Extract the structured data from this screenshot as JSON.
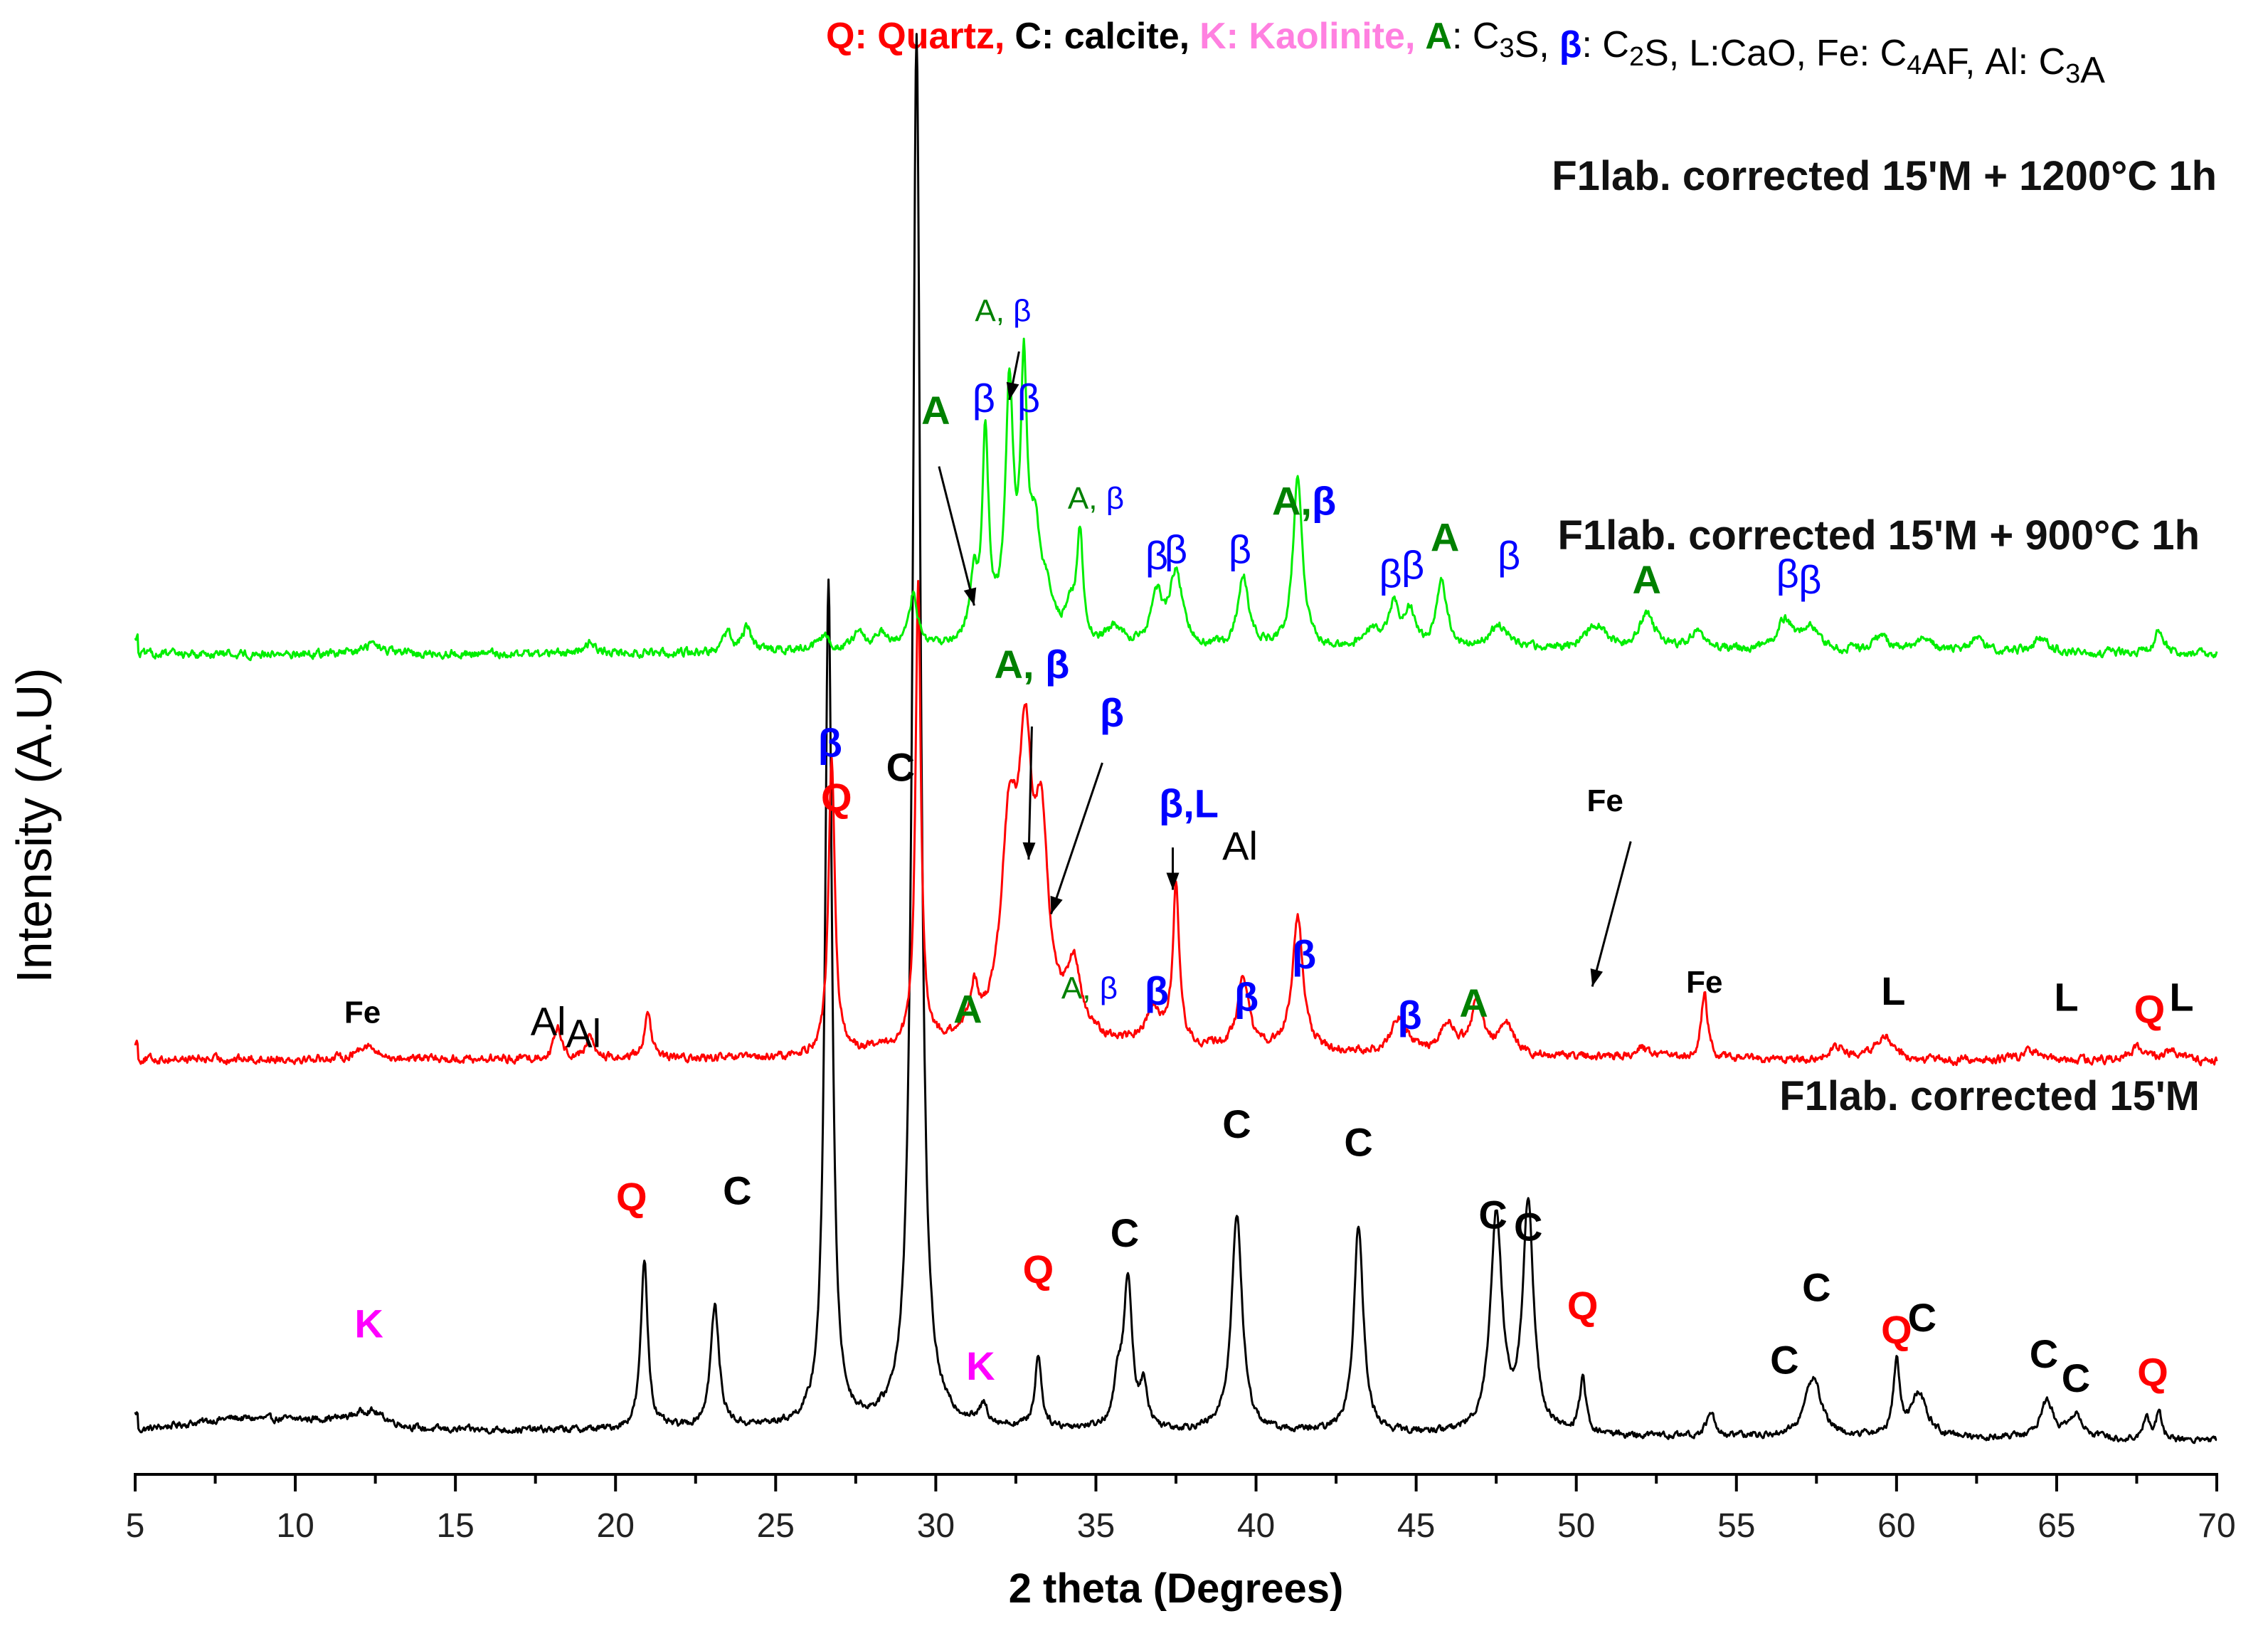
{
  "chart_data": {
    "type": "line",
    "xlabel": "2 theta (Degrees)",
    "ylabel": "Intensity (A.U)",
    "xlim": [
      5,
      70
    ],
    "x_ticks": [
      5,
      10,
      15,
      20,
      25,
      30,
      35,
      40,
      45,
      50,
      55,
      60,
      65,
      70
    ],
    "y_ticks_shown": false,
    "legend": {
      "placement": "top",
      "items": [
        {
          "symbol": "Q",
          "separator": ": ",
          "text": "Quartz,",
          "color": "#ff0000",
          "symbol_bold": true,
          "text_bold": true
        },
        {
          "symbol": "C",
          "separator": ": ",
          "text": "calcite,",
          "color": "#000000",
          "symbol_bold": true,
          "text_bold": true
        },
        {
          "symbol": "K",
          "separator": ": ",
          "text": "Kaolinite,",
          "color": "#ff80e0",
          "symbol_bold": true,
          "text_bold": true
        },
        {
          "symbol": "A",
          "separator": ": ",
          "text": "C3S,",
          "color": "#008000",
          "symbol_bold": true,
          "text_bold": false
        },
        {
          "symbol": "β",
          "separator": ": ",
          "text": "C2S,",
          "color": "#0000ff",
          "symbol_bold": true,
          "text_bold": false
        },
        {
          "symbol": "L",
          "separator": ":",
          "text": "CaO,",
          "color": "#000000",
          "symbol_bold": false,
          "text_bold": false
        },
        {
          "symbol": "Fe",
          "separator": ": ",
          "text": "C4AF,",
          "color": "#000000",
          "symbol_bold": false,
          "text_bold": false
        },
        {
          "symbol": "Al",
          "separator": ": ",
          "text": "C3A",
          "color": "#000000",
          "symbol_bold": false,
          "text_bold": false
        }
      ]
    },
    "series": [
      {
        "name": "F1lab. corrected 15'M",
        "color": "#000000",
        "baseline": 0,
        "noise": 5,
        "background": [
          [
            5,
            8
          ],
          [
            8,
            18
          ],
          [
            11,
            16
          ],
          [
            14,
            8
          ],
          [
            20,
            8
          ],
          [
            25,
            10
          ],
          [
            30,
            10
          ],
          [
            40,
            6
          ],
          [
            50,
            3
          ],
          [
            60,
            2
          ],
          [
            70,
            0
          ]
        ],
        "peaks": [
          [
            12.3,
            12,
            0.6
          ],
          [
            20.9,
            140,
            0.13
          ],
          [
            23.1,
            100,
            0.16
          ],
          [
            26.65,
            700,
            0.13
          ],
          [
            29.4,
            1150,
            0.15
          ],
          [
            31.5,
            15,
            0.15
          ],
          [
            33.2,
            60,
            0.12
          ],
          [
            35.7,
            35,
            0.15
          ],
          [
            36.0,
            120,
            0.16
          ],
          [
            36.5,
            35,
            0.12
          ],
          [
            39.4,
            180,
            0.2
          ],
          [
            43.2,
            170,
            0.18
          ],
          [
            47.5,
            180,
            0.22
          ],
          [
            48.5,
            190,
            0.2
          ],
          [
            50.2,
            45,
            0.12
          ],
          [
            54.2,
            20,
            0.15
          ],
          [
            57.4,
            50,
            0.3
          ],
          [
            60.0,
            60,
            0.12
          ],
          [
            60.7,
            35,
            0.3
          ],
          [
            64.7,
            30,
            0.25
          ],
          [
            65.6,
            20,
            0.25
          ],
          [
            67.8,
            20,
            0.1
          ],
          [
            68.2,
            25,
            0.1
          ]
        ]
      },
      {
        "name": "F1lab. corrected 15'M + 900°C 1h",
        "color": "#ff0000",
        "baseline": 310,
        "noise": 6,
        "background": [
          [
            5,
            5
          ],
          [
            25,
            5
          ],
          [
            30,
            15
          ],
          [
            33,
            25
          ],
          [
            36,
            15
          ],
          [
            45,
            8
          ],
          [
            55,
            5
          ],
          [
            70,
            3
          ]
        ],
        "peaks": [
          [
            12.2,
            12,
            0.3
          ],
          [
            18.2,
            25,
            0.15
          ],
          [
            19.2,
            18,
            0.15
          ],
          [
            21.0,
            40,
            0.12
          ],
          [
            26.75,
            240,
            0.12
          ],
          [
            29.45,
            380,
            0.1
          ],
          [
            31.2,
            35,
            0.15
          ],
          [
            32.3,
            160,
            0.3
          ],
          [
            32.8,
            200,
            0.25
          ],
          [
            33.3,
            150,
            0.25
          ],
          [
            34.3,
            55,
            0.25
          ],
          [
            36.8,
            30,
            0.3
          ],
          [
            37.5,
            130,
            0.12
          ],
          [
            39.6,
            60,
            0.2
          ],
          [
            41.3,
            110,
            0.2
          ],
          [
            44.5,
            30,
            0.3
          ],
          [
            46.0,
            25,
            0.3
          ],
          [
            46.9,
            45,
            0.2
          ],
          [
            47.8,
            25,
            0.3
          ],
          [
            52.0,
            10,
            0.2
          ],
          [
            54.0,
            55,
            0.12
          ],
          [
            58.2,
            10,
            0.3
          ],
          [
            59.6,
            20,
            0.3
          ],
          [
            64.2,
            8,
            0.3
          ],
          [
            67.5,
            10,
            0.3
          ],
          [
            68.6,
            8,
            0.3
          ]
        ]
      },
      {
        "name": "F1lab. corrected 15'M + 1200°C 1h",
        "color": "#00ee00",
        "baseline": 640,
        "noise": 6,
        "background": [
          [
            5,
            10
          ],
          [
            20,
            10
          ],
          [
            30,
            15
          ],
          [
            32,
            22
          ],
          [
            35,
            14
          ],
          [
            45,
            12
          ],
          [
            55,
            12
          ],
          [
            70,
            10
          ]
        ],
        "peaks": [
          [
            12.4,
            8,
            0.3
          ],
          [
            19.2,
            10,
            0.2
          ],
          [
            23.5,
            15,
            0.15
          ],
          [
            24.1,
            20,
            0.15
          ],
          [
            26.5,
            10,
            0.2
          ],
          [
            27.6,
            12,
            0.2
          ],
          [
            28.3,
            10,
            0.2
          ],
          [
            29.3,
            45,
            0.15
          ],
          [
            31.2,
            50,
            0.12
          ],
          [
            31.55,
            165,
            0.12
          ],
          [
            32.3,
            200,
            0.15
          ],
          [
            32.75,
            205,
            0.12
          ],
          [
            33.1,
            80,
            0.2
          ],
          [
            33.5,
            30,
            0.2
          ],
          [
            34.2,
            25,
            0.2
          ],
          [
            34.5,
            85,
            0.12
          ],
          [
            35.6,
            15,
            0.3
          ],
          [
            36.9,
            40,
            0.2
          ],
          [
            37.5,
            60,
            0.25
          ],
          [
            39.6,
            60,
            0.2
          ],
          [
            41.3,
            140,
            0.18
          ],
          [
            43.6,
            15,
            0.3
          ],
          [
            44.3,
            35,
            0.2
          ],
          [
            44.8,
            30,
            0.2
          ],
          [
            45.8,
            55,
            0.2
          ],
          [
            47.6,
            20,
            0.4
          ],
          [
            50.6,
            20,
            0.4
          ],
          [
            52.2,
            30,
            0.3
          ],
          [
            53.8,
            15,
            0.3
          ],
          [
            56.5,
            25,
            0.3
          ],
          [
            57.3,
            20,
            0.3
          ],
          [
            59.5,
            12,
            0.3
          ],
          [
            60.9,
            10,
            0.3
          ],
          [
            62.5,
            10,
            0.3
          ],
          [
            64.5,
            12,
            0.3
          ],
          [
            68.2,
            20,
            0.15
          ]
        ]
      }
    ],
    "pattern_titles": [
      {
        "text": "F1lab. corrected 15'M + 1200°C 1h",
        "color": "#111111"
      },
      {
        "text": "F1lab. corrected 15'M + 900°C 1h",
        "color": "#111111"
      },
      {
        "text": "F1lab. corrected 15'M",
        "color": "#111111"
      }
    ],
    "peak_labels": [
      {
        "text": "K",
        "x": 12.3,
        "y": 85,
        "color": "#ff00ff",
        "bold": true
      },
      {
        "text": "Q",
        "x": 20.5,
        "y": 190,
        "color": "#ff0000",
        "bold": true
      },
      {
        "text": "C",
        "x": 23.8,
        "y": 195,
        "color": "#000000",
        "bold": true
      },
      {
        "text": "Q",
        "x": 26.9,
        "y": 520,
        "color": "#ff0000",
        "bold": true
      },
      {
        "text": "C",
        "x": 28.9,
        "y": 545,
        "color": "#000000",
        "bold": true
      },
      {
        "text": "K",
        "x": 31.4,
        "y": 50,
        "color": "#ff00ff",
        "bold": true
      },
      {
        "text": "Q",
        "x": 33.2,
        "y": 130,
        "color": "#ff0000",
        "bold": true
      },
      {
        "text": "C",
        "x": 35.9,
        "y": 160,
        "color": "#000000",
        "bold": true
      },
      {
        "text": "C",
        "x": 39.4,
        "y": 250,
        "color": "#000000",
        "bold": true
      },
      {
        "text": "C",
        "x": 43.2,
        "y": 235,
        "color": "#000000",
        "bold": true
      },
      {
        "text": "C",
        "x": 47.4,
        "y": 175,
        "color": "#000000",
        "bold": true
      },
      {
        "text": "C",
        "x": 48.5,
        "y": 165,
        "color": "#000000",
        "bold": true
      },
      {
        "text": "Q",
        "x": 50.2,
        "y": 100,
        "color": "#ff0000",
        "bold": true
      },
      {
        "text": "C",
        "x": 56.5,
        "y": 55,
        "color": "#000000",
        "bold": true
      },
      {
        "text": "C",
        "x": 57.5,
        "y": 115,
        "color": "#000000",
        "bold": true
      },
      {
        "text": "Q",
        "x": 60.0,
        "y": 80,
        "color": "#ff0000",
        "bold": true
      },
      {
        "text": "C",
        "x": 60.8,
        "y": 90,
        "color": "#000000",
        "bold": true
      },
      {
        "text": "C",
        "x": 64.6,
        "y": 60,
        "color": "#000000",
        "bold": true
      },
      {
        "text": "C",
        "x": 65.6,
        "y": 40,
        "color": "#000000",
        "bold": true
      },
      {
        "text": "Q",
        "x": 68.0,
        "y": 45,
        "color": "#ff0000",
        "bold": true
      },
      {
        "text": "Fe",
        "x": 12.1,
        "y": 345,
        "color": "#000000",
        "bold": true,
        "small": true
      },
      {
        "text": "Al",
        "x": 17.9,
        "y": 335,
        "color": "#000000",
        "bold": false
      },
      {
        "text": "Al",
        "x": 19.0,
        "y": 325,
        "color": "#000000",
        "bold": false
      },
      {
        "text": "β",
        "x": 26.7,
        "y": 565,
        "color": "#0000ff",
        "bold": true
      },
      {
        "text": "A",
        "x": 31.0,
        "y": 345,
        "color": "#008000",
        "bold": true
      },
      {
        "text": "A, β",
        "x": 33.0,
        "y": 630,
        "color": "#008000",
        "second_color": "#0000ff",
        "bold": true
      },
      {
        "text": "β",
        "x": 35.5,
        "y": 590,
        "color": "#0000ff",
        "bold": true
      },
      {
        "text": "A, β",
        "x": 34.8,
        "y": 365,
        "color": "#008000",
        "second_color": "#0000ff",
        "bold": false,
        "small": true
      },
      {
        "text": "β",
        "x": 36.9,
        "y": 360,
        "color": "#0000ff",
        "bold": true
      },
      {
        "text": "β,L",
        "x": 37.9,
        "y": 515,
        "color": "#0000ff",
        "bold": true
      },
      {
        "text": "Al",
        "x": 39.5,
        "y": 480,
        "color": "#000000",
        "bold": false
      },
      {
        "text": "β",
        "x": 39.7,
        "y": 355,
        "color": "#0000ff",
        "bold": true
      },
      {
        "text": "β",
        "x": 41.5,
        "y": 390,
        "color": "#0000ff",
        "bold": true
      },
      {
        "text": "Fe",
        "x": 50.9,
        "y": 520,
        "color": "#000000",
        "bold": true,
        "small": true
      },
      {
        "text": "β",
        "x": 44.8,
        "y": 340,
        "color": "#0000ff",
        "bold": true
      },
      {
        "text": "A",
        "x": 46.8,
        "y": 350,
        "color": "#008000",
        "bold": true
      },
      {
        "text": "Fe",
        "x": 54.0,
        "y": 370,
        "color": "#000000",
        "bold": true,
        "small": true
      },
      {
        "text": "L",
        "x": 59.9,
        "y": 360,
        "color": "#000000",
        "bold": true
      },
      {
        "text": "L",
        "x": 65.3,
        "y": 355,
        "color": "#000000",
        "bold": true
      },
      {
        "text": "Q",
        "x": 67.9,
        "y": 345,
        "color": "#ff0000",
        "bold": true
      },
      {
        "text": "L",
        "x": 68.9,
        "y": 355,
        "color": "#000000",
        "bold": true
      },
      {
        "text": "A",
        "x": 30.0,
        "y": 840,
        "color": "#008000",
        "bold": true,
        "serif": true
      },
      {
        "text": "β",
        "x": 31.5,
        "y": 850,
        "color": "#0000ff",
        "bold": false
      },
      {
        "text": "A, β",
        "x": 32.1,
        "y": 925,
        "color": "#008000",
        "second_color": "#0000ff",
        "bold": false,
        "small": true,
        "serif": true
      },
      {
        "text": "β",
        "x": 32.9,
        "y": 850,
        "color": "#0000ff",
        "bold": false
      },
      {
        "text": "A, β",
        "x": 35.0,
        "y": 770,
        "color": "#008000",
        "second_color": "#0000ff",
        "bold": false,
        "small": true,
        "serif": true
      },
      {
        "text": "β",
        "x": 36.9,
        "y": 720,
        "color": "#0000ff",
        "bold": false
      },
      {
        "text": "β",
        "x": 37.5,
        "y": 725,
        "color": "#0000ff",
        "bold": false
      },
      {
        "text": "β",
        "x": 39.5,
        "y": 725,
        "color": "#0000ff",
        "bold": false
      },
      {
        "text": "A,β",
        "x": 41.5,
        "y": 765,
        "color": "#008000",
        "second_color": "#0000ff",
        "bold": true,
        "serif": true
      },
      {
        "text": "β",
        "x": 44.2,
        "y": 705,
        "color": "#0000ff",
        "bold": false
      },
      {
        "text": "β",
        "x": 44.9,
        "y": 712,
        "color": "#0000ff",
        "bold": false
      },
      {
        "text": "A",
        "x": 45.9,
        "y": 735,
        "color": "#008000",
        "bold": true,
        "serif": true
      },
      {
        "text": "β",
        "x": 47.9,
        "y": 720,
        "color": "#0000ff",
        "bold": false
      },
      {
        "text": "A",
        "x": 52.2,
        "y": 700,
        "color": "#008000",
        "bold": true,
        "serif": true
      },
      {
        "text": "β",
        "x": 56.6,
        "y": 705,
        "color": "#0000ff",
        "bold": false
      },
      {
        "text": "β",
        "x": 57.3,
        "y": 700,
        "color": "#0000ff",
        "bold": false
      }
    ],
    "arrows": [
      {
        "from": [
          30.1,
          805
        ],
        "to": [
          31.2,
          690
        ]
      },
      {
        "from": [
          32.6,
          900
        ],
        "to": [
          32.3,
          860
        ]
      },
      {
        "from": [
          33.0,
          590
        ],
        "to": [
          32.9,
          480
        ]
      },
      {
        "from": [
          35.2,
          560
        ],
        "to": [
          33.6,
          435
        ]
      },
      {
        "from": [
          37.4,
          490
        ],
        "to": [
          37.4,
          455
        ]
      },
      {
        "from": [
          51.7,
          495
        ],
        "to": [
          50.5,
          375
        ]
      }
    ]
  }
}
